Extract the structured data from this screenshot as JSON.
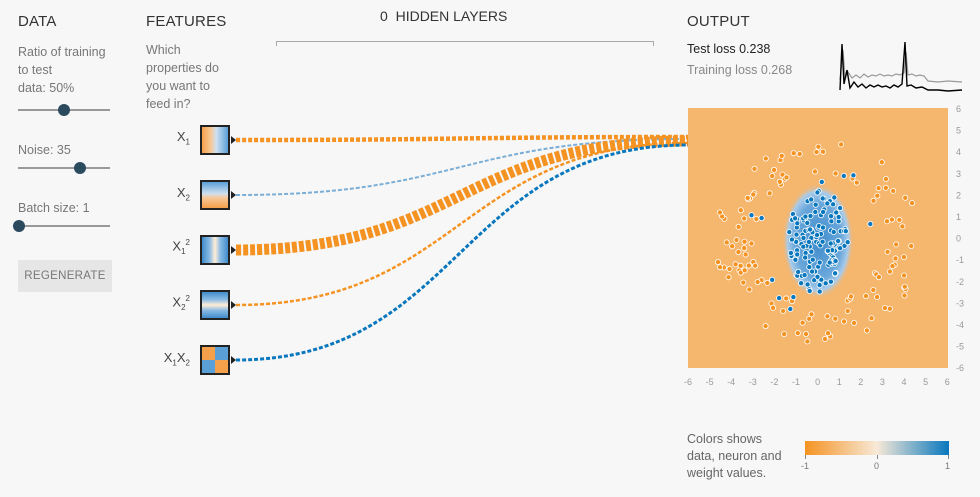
{
  "data_panel": {
    "title": "DATA",
    "ratio_label_line1": "Ratio of training",
    "ratio_label_line2": "to test",
    "ratio_label_line3": "data:  50%",
    "ratio_value": 0.5,
    "noise_label": "Noise:  35",
    "noise_value": 0.7,
    "batch_label": "Batch size:  1",
    "batch_value": 0.0,
    "regenerate_label": "REGENERATE"
  },
  "features_panel": {
    "title": "FEATURES",
    "question_line1": "Which",
    "question_line2": "properties do",
    "question_line3": "you want to",
    "question_line4": "feed in?",
    "features": [
      {
        "base": "X",
        "sub": "1",
        "sup": ""
      },
      {
        "base": "X",
        "sub": "2",
        "sup": ""
      },
      {
        "base": "X",
        "sub": "1",
        "sup": "2"
      },
      {
        "base": "X",
        "sub": "2",
        "sup": "2"
      },
      {
        "base": "X",
        "sub": "1",
        "sup": "",
        "base2": "X",
        "sub2": "2"
      }
    ]
  },
  "hidden": {
    "count": "0",
    "label": "HIDDEN LAYERS"
  },
  "output_panel": {
    "title": "OUTPUT",
    "test_loss": "Test loss 0.238",
    "training_loss": "Training loss 0.268",
    "x_ticks": [
      "-6",
      "-5",
      "-4",
      "-3",
      "-2",
      "-1",
      "0",
      "1",
      "2",
      "3",
      "4",
      "5",
      "6"
    ],
    "y_ticks": [
      "6",
      "5",
      "4",
      "3",
      "2",
      "1",
      "0",
      "-1",
      "-2",
      "-3",
      "-4",
      "-5",
      "-6"
    ]
  },
  "legend": {
    "line1": "Colors shows",
    "line2": "data, neuron and",
    "line3": "weight values.",
    "min": "-1",
    "mid": "0",
    "max": "1"
  },
  "colors": {
    "orange": "#f59322",
    "blue": "#0877bd",
    "bg_orange": "#f5b66e",
    "light_blue": "#9ec6e8"
  }
}
